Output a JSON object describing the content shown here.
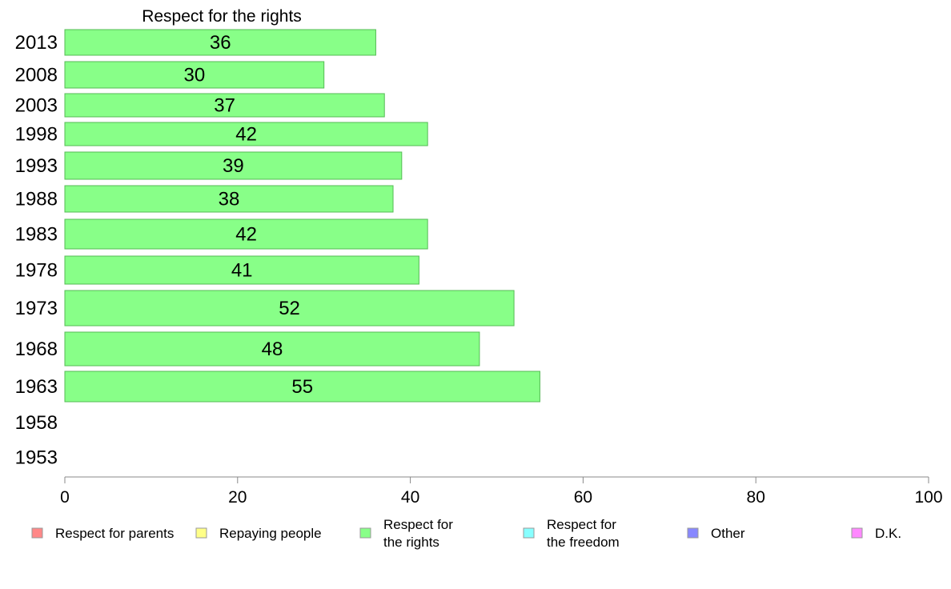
{
  "chart_data": {
    "type": "bar",
    "orientation": "horizontal",
    "title": "Respect for the rights",
    "categories": [
      "2013",
      "2008",
      "2003",
      "1998",
      "1993",
      "1988",
      "1983",
      "1978",
      "1973",
      "1968",
      "1963",
      "1958",
      "1953"
    ],
    "series": [
      {
        "name": "Respect for the rights",
        "values": [
          36,
          30,
          37,
          42,
          39,
          38,
          42,
          41,
          52,
          48,
          55,
          null,
          null
        ],
        "color": "#88ff88"
      }
    ],
    "xlim": [
      0,
      100
    ],
    "xticks": [
      0,
      20,
      40,
      60,
      80,
      100
    ],
    "grid": false,
    "legend": {
      "placement": "bottom",
      "entries": [
        {
          "lines": [
            "Respect for parents"
          ],
          "color": "#ff8888"
        },
        {
          "lines": [
            "Repaying people"
          ],
          "color": "#ffff88"
        },
        {
          "lines": [
            "Respect for",
            "the rights"
          ],
          "color": "#88ff88"
        },
        {
          "lines": [
            "Respect for",
            "the freedom"
          ],
          "color": "#88ffff"
        },
        {
          "lines": [
            "Other"
          ],
          "color": "#8888ff"
        },
        {
          "lines": [
            "D.K."
          ],
          "color": "#ff88ff"
        }
      ]
    },
    "colors": {
      "bar_stroke": "#55bb55",
      "axis": "#888888"
    }
  }
}
